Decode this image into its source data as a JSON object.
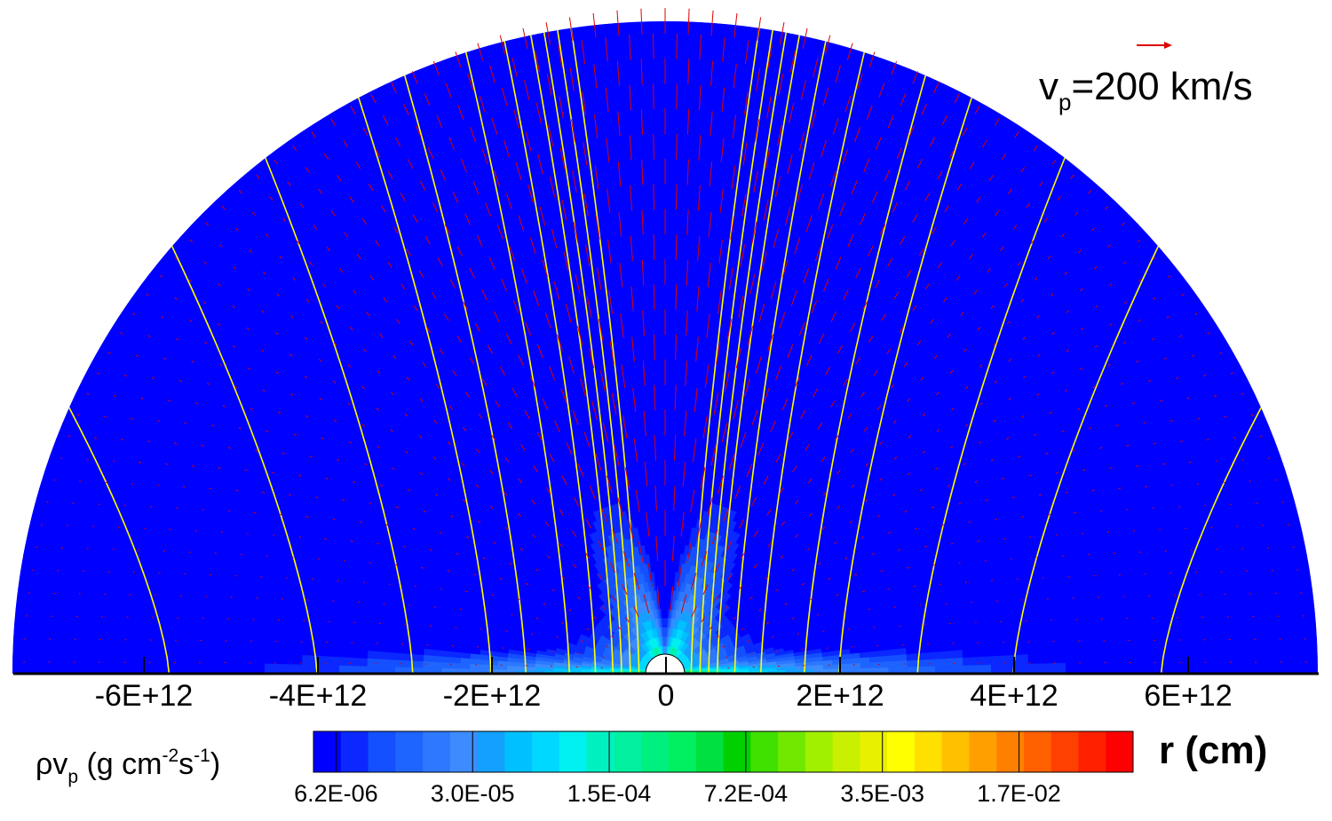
{
  "chart_data": {
    "type": "heatmap",
    "title": "",
    "xlabel": "r (cm)",
    "xlim": [
      -7500000000000.0,
      7500000000000.0
    ],
    "x_ticks": [
      {
        "value": -6000000000000.0,
        "label": "-6E+12"
      },
      {
        "value": -4000000000000.0,
        "label": "-4E+12"
      },
      {
        "value": -2000000000000.0,
        "label": "-2E+12"
      },
      {
        "value": 0,
        "label": "0"
      },
      {
        "value": 2000000000000.0,
        "label": "2E+12"
      },
      {
        "value": 4000000000000.0,
        "label": "4E+12"
      },
      {
        "value": 6000000000000.0,
        "label": "6E+12"
      }
    ],
    "domain": "upper half-disk of radius 7.5E+12 cm with an inner hole of radius 2E+11 cm",
    "colorbar": {
      "label": "ρv",
      "label_sub": "p",
      "label_units_pre": " (g cm",
      "label_units_exp1": "-2",
      "label_units_mid": "s",
      "label_units_exp2": "-1",
      "label_units_post": ")",
      "scale": "log",
      "range": [
        6.2e-06,
        0.08
      ],
      "tick_labels": [
        "6.2E-06",
        "3.0E-05",
        "1.5E-04",
        "7.2E-04",
        "3.5E-03",
        "1.7E-02"
      ],
      "colors": [
        "#0000ff",
        "#0a28ff",
        "#1450ff",
        "#1e64ff",
        "#2d78ff",
        "#3c8cff",
        "#14a0ff",
        "#00c0ff",
        "#00d8ff",
        "#00f0f0",
        "#00f0c0",
        "#00f0a0",
        "#00f080",
        "#00f060",
        "#00e040",
        "#00d000",
        "#40e000",
        "#70e800",
        "#a0f000",
        "#c8f000",
        "#e8f000",
        "#ffff00",
        "#ffe000",
        "#ffc000",
        "#ffa000",
        "#ff8000",
        "#ff6000",
        "#ff4000",
        "#ff2000",
        "#ff0000"
      ]
    },
    "vector_reference": {
      "label": "v",
      "label_sub": "p",
      "label_post": "=200 km/s",
      "color": "#dd0000"
    },
    "vector_field": {
      "quantity": "poloidal velocity v_p",
      "color": "#dd0000",
      "description": "radial outflow, fastest near the polar axis"
    },
    "field_lines": {
      "color": "#ffff00",
      "footpoints_r": [
        300000000000.0,
        400000000000.0,
        500000000000.0,
        600000000000.0,
        800000000000.0,
        1100000000000.0,
        1600000000000.0,
        2000000000000.0,
        2900000000000.0,
        4000000000000.0,
        5700000000000.0
      ],
      "description": "yellow/white poloidal field lines, symmetric about the axis"
    }
  }
}
